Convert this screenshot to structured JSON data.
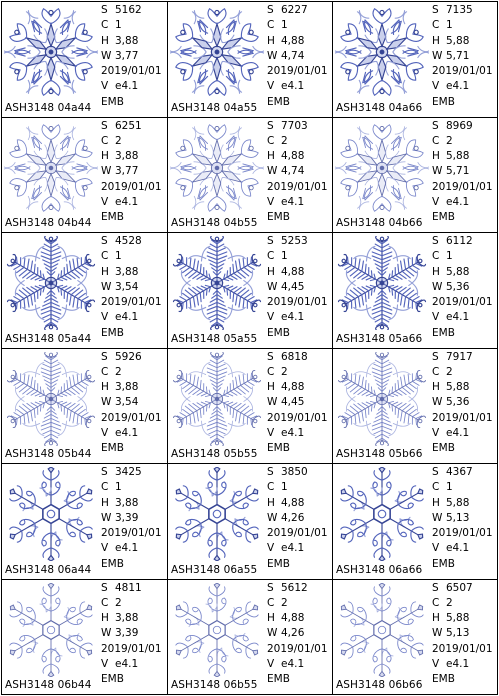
{
  "designs": [
    {
      "code": "ASH3148 04a44",
      "S": "5162",
      "C": "1",
      "H": "3,88",
      "W": "3,77",
      "date": "2019/01/01",
      "V": "e4.1",
      "fmt": "EMB",
      "style": "a",
      "shade": 1
    },
    {
      "code": "ASH3148 04a55",
      "S": "6227",
      "C": "1",
      "H": "4,88",
      "W": "4,74",
      "date": "2019/01/01",
      "V": "e4.1",
      "fmt": "EMB",
      "style": "a",
      "shade": 1
    },
    {
      "code": "ASH3148 04a66",
      "S": "7135",
      "C": "1",
      "H": "5,88",
      "W": "5,71",
      "date": "2019/01/01",
      "V": "e4.1",
      "fmt": "EMB",
      "style": "a",
      "shade": 1
    },
    {
      "code": "ASH3148 04b44",
      "S": "6251",
      "C": "2",
      "H": "3,88",
      "W": "3,77",
      "date": "2019/01/01",
      "V": "e4.1",
      "fmt": "EMB",
      "style": "a",
      "shade": 2
    },
    {
      "code": "ASH3148 04b55",
      "S": "7703",
      "C": "2",
      "H": "4,88",
      "W": "4,74",
      "date": "2019/01/01",
      "V": "e4.1",
      "fmt": "EMB",
      "style": "a",
      "shade": 2
    },
    {
      "code": "ASH3148 04b66",
      "S": "8969",
      "C": "2",
      "H": "5,88",
      "W": "5,71",
      "date": "2019/01/01",
      "V": "e4.1",
      "fmt": "EMB",
      "style": "a",
      "shade": 2
    },
    {
      "code": "ASH3148 05a44",
      "S": "4528",
      "C": "1",
      "H": "3,88",
      "W": "3,54",
      "date": "2019/01/01",
      "V": "e4.1",
      "fmt": "EMB",
      "style": "b",
      "shade": 1
    },
    {
      "code": "ASH3148 05a55",
      "S": "5253",
      "C": "1",
      "H": "4,88",
      "W": "4,45",
      "date": "2019/01/01",
      "V": "e4.1",
      "fmt": "EMB",
      "style": "b",
      "shade": 1
    },
    {
      "code": "ASH3148 05a66",
      "S": "6112",
      "C": "1",
      "H": "5,88",
      "W": "5,36",
      "date": "2019/01/01",
      "V": "e4.1",
      "fmt": "EMB",
      "style": "b",
      "shade": 1
    },
    {
      "code": "ASH3148 05b44",
      "S": "5926",
      "C": "2",
      "H": "3,88",
      "W": "3,54",
      "date": "2019/01/01",
      "V": "e4.1",
      "fmt": "EMB",
      "style": "b",
      "shade": 2
    },
    {
      "code": "ASH3148 05b55",
      "S": "6818",
      "C": "2",
      "H": "4,88",
      "W": "4,45",
      "date": "2019/01/01",
      "V": "e4.1",
      "fmt": "EMB",
      "style": "b",
      "shade": 2
    },
    {
      "code": "ASH3148 05b66",
      "S": "7917",
      "C": "2",
      "H": "5,88",
      "W": "5,36",
      "date": "2019/01/01",
      "V": "e4.1",
      "fmt": "EMB",
      "style": "b",
      "shade": 2
    },
    {
      "code": "ASH3148 06a44",
      "S": "3425",
      "C": "1",
      "H": "3,88",
      "W": "3,39",
      "date": "2019/01/01",
      "V": "e4.1",
      "fmt": "EMB",
      "style": "c",
      "shade": 1
    },
    {
      "code": "ASH3148 06a55",
      "S": "3850",
      "C": "1",
      "H": "4,88",
      "W": "4,26",
      "date": "2019/01/01",
      "V": "e4.1",
      "fmt": "EMB",
      "style": "c",
      "shade": 1
    },
    {
      "code": "ASH3148 06a66",
      "S": "4367",
      "C": "1",
      "H": "5,88",
      "W": "5,13",
      "date": "2019/01/01",
      "V": "e4.1",
      "fmt": "EMB",
      "style": "c",
      "shade": 1
    },
    {
      "code": "ASH3148 06b44",
      "S": "4811",
      "C": "2",
      "H": "3,88",
      "W": "3,39",
      "date": "2019/01/01",
      "V": "e4.1",
      "fmt": "EMB",
      "style": "c",
      "shade": 2
    },
    {
      "code": "ASH3148 06b55",
      "S": "5612",
      "C": "2",
      "H": "4,88",
      "W": "4,26",
      "date": "2019/01/01",
      "V": "e4.1",
      "fmt": "EMB",
      "style": "c",
      "shade": 2
    },
    {
      "code": "ASH3148 06b66",
      "S": "6507",
      "C": "2",
      "H": "5,88",
      "W": "5,13",
      "date": "2019/01/01",
      "V": "e4.1",
      "fmt": "EMB",
      "style": "c",
      "shade": 2
    }
  ],
  "labels": {
    "S": "S",
    "C": "C",
    "H": "H",
    "W": "W",
    "V": "V"
  },
  "colors": {
    "thread_dark": "#2b3a8f",
    "thread_mid": "#4a5cb8",
    "thread_light": "#8f9bd6",
    "border": "#000000"
  }
}
